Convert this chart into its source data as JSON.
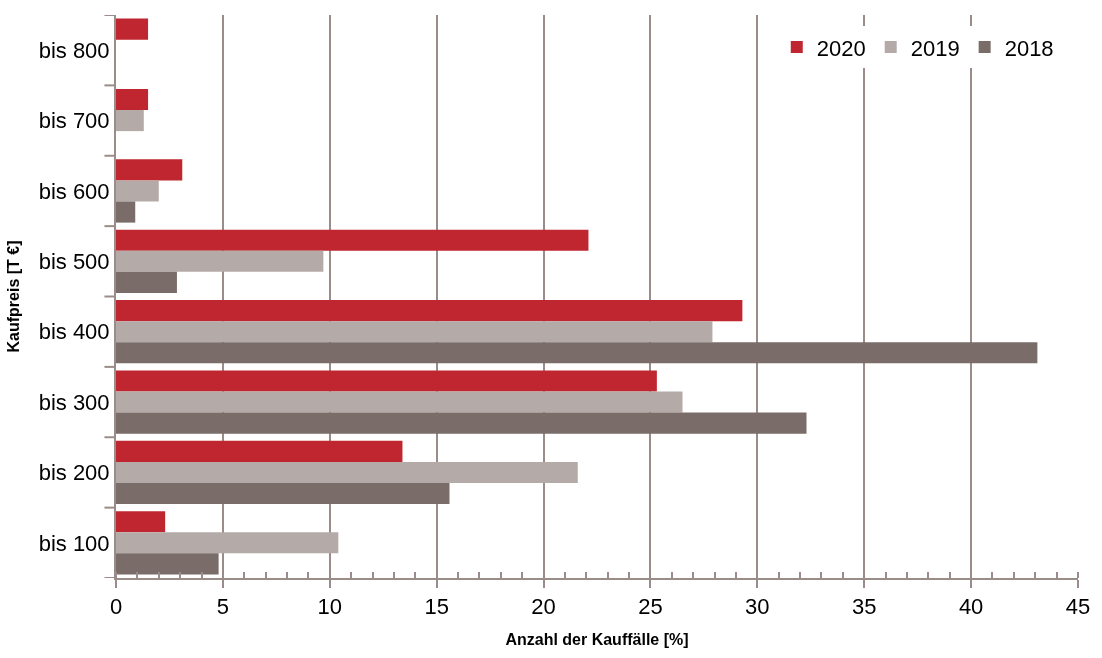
{
  "chart_data": {
    "type": "bar",
    "orientation": "horizontal",
    "xlabel": "Anzahl der Kauffälle [%]",
    "ylabel": "Kaufpreis [T €]",
    "categories": [
      "bis 800",
      "bis 700",
      "bis 600",
      "bis 500",
      "bis 400",
      "bis 300",
      "bis 200",
      "bis 100"
    ],
    "series": [
      {
        "name": "2020",
        "color": "#c0262f",
        "values": [
          1.5,
          1.5,
          3.1,
          22.1,
          29.3,
          25.3,
          13.4,
          2.3
        ]
      },
      {
        "name": "2019",
        "color": "#b4aba8",
        "values": [
          null,
          1.3,
          2.0,
          9.7,
          27.9,
          26.5,
          21.6,
          10.4
        ]
      },
      {
        "name": "2018",
        "color": "#7a6c68",
        "values": [
          null,
          null,
          0.9,
          2.85,
          43.1,
          32.3,
          15.6,
          4.8
        ]
      }
    ],
    "xlim": [
      0,
      45
    ],
    "xticks": [
      0,
      5,
      10,
      15,
      20,
      25,
      30,
      35,
      40,
      45
    ],
    "grid": "x",
    "legend": "top right"
  }
}
